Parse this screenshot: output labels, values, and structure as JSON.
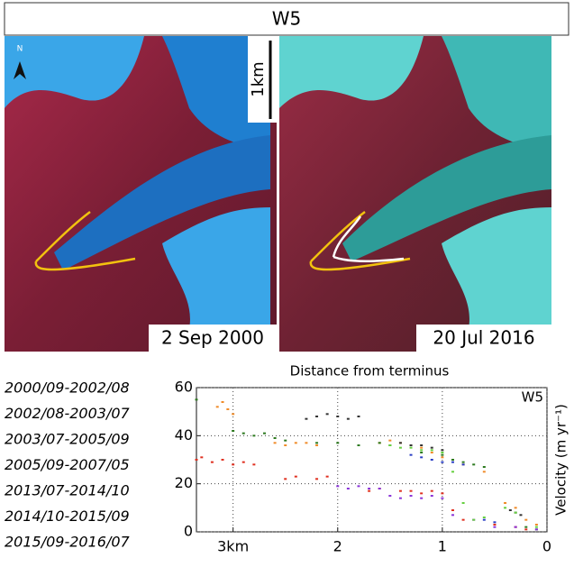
{
  "panels": {
    "title": "W5",
    "north": "N",
    "scale": "1km",
    "left_date": "2 Sep 2000",
    "right_date": "20 Jul 2016"
  },
  "chart_data": {
    "type": "scatter",
    "title": "Distance from terminus",
    "ylabel": "Velocity (m yr⁻¹)",
    "annotation": "W5",
    "xlim": [
      3.35,
      0
    ],
    "xticks": [
      {
        "value": 3,
        "label": "3km"
      },
      2,
      1,
      0
    ],
    "ylim": [
      0,
      60
    ],
    "yticks": [
      0,
      20,
      40,
      60
    ],
    "grid": true,
    "legend": "left",
    "series": [
      {
        "name": "2000/09-2002/08",
        "color": "#f08c2a",
        "x": [
          3.15,
          3.1,
          3.05,
          3.0,
          2.6,
          2.5,
          2.4,
          2.3,
          2.2,
          1.6,
          1.5,
          1.4,
          1.3,
          1.2,
          1.1,
          1.0,
          0.9,
          0.8,
          0.6,
          0.4,
          0.3,
          0.2,
          0.1
        ],
        "values": [
          52,
          54,
          51,
          49,
          37,
          36,
          37,
          37,
          36,
          37,
          38,
          37,
          36,
          35,
          33,
          31,
          30,
          28,
          25,
          12,
          10,
          5,
          3
        ]
      },
      {
        "name": "2002/08-2003/07",
        "color": "#333333",
        "x": [
          2.3,
          2.2,
          2.1,
          2.0,
          1.9,
          1.8,
          1.4,
          1.3,
          1.2,
          1.1,
          1.0,
          0.35,
          0.3,
          0.25
        ],
        "values": [
          47,
          48,
          49,
          48,
          47,
          48,
          37,
          36,
          36,
          35,
          34,
          9,
          8,
          7
        ]
      },
      {
        "name": "2003/07-2005/09",
        "color": "#2d7a1f",
        "x": [
          3.35,
          3.0,
          2.9,
          2.8,
          2.7,
          2.6,
          2.5,
          2.2,
          2.0,
          1.8,
          1.6,
          1.5,
          1.2,
          1.0,
          0.9,
          0.8,
          0.7,
          0.6,
          0.2,
          0.1
        ],
        "values": [
          55,
          42,
          41,
          40,
          41,
          39,
          38,
          37,
          37,
          36,
          37,
          36,
          33,
          32,
          30,
          29,
          28,
          27,
          2,
          1
        ]
      },
      {
        "name": "2005/09-2007/05",
        "color": "#2a3fc4",
        "x": [
          1.3,
          1.2,
          1.1,
          1.0,
          0.9,
          0.8,
          0.6,
          0.5
        ],
        "values": [
          32,
          31,
          30,
          29,
          29,
          28,
          5,
          4
        ]
      },
      {
        "name": "2013/07-2014/10",
        "color": "#e03020",
        "x": [
          3.35,
          3.3,
          3.2,
          3.1,
          3.0,
          2.9,
          2.8,
          2.5,
          2.4,
          2.2,
          2.1,
          1.7,
          1.6,
          1.4,
          1.3,
          1.2,
          1.1,
          1.0,
          0.9,
          0.8,
          0.5,
          0.3,
          0.2
        ],
        "values": [
          30,
          31,
          29,
          30,
          28,
          29,
          28,
          22,
          23,
          22,
          23,
          17,
          18,
          17,
          17,
          16,
          17,
          16,
          9,
          5,
          3,
          2,
          1
        ]
      },
      {
        "name": "2014/10-2015/09",
        "color": "#8a35d8",
        "x": [
          2.0,
          1.9,
          1.8,
          1.7,
          1.6,
          1.5,
          1.4,
          1.3,
          1.2,
          1.1,
          1.0,
          0.9,
          0.7,
          0.5,
          0.3,
          0.1
        ],
        "values": [
          19,
          18,
          19,
          18,
          18,
          15,
          14,
          15,
          14,
          15,
          14,
          7,
          5,
          2,
          2,
          1
        ]
      },
      {
        "name": "2015/09-2016/07",
        "color": "#66d040",
        "x": [
          1.5,
          1.4,
          1.3,
          1.2,
          1.1,
          1.0,
          0.9,
          0.8,
          0.7,
          0.6,
          0.4,
          0.3,
          0.1
        ],
        "values": [
          36,
          35,
          35,
          34,
          34,
          33,
          25,
          12,
          5,
          6,
          10,
          8,
          2
        ]
      }
    ]
  }
}
